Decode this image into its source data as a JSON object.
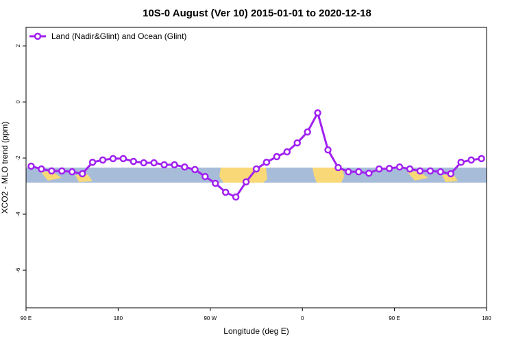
{
  "chart_data": {
    "type": "line",
    "title": "10S-0 August (Ver 10)   2015-01-01 to 2020-12-18",
    "x_label": "Longitude (deg E)",
    "y_label": "XCO2 - MLO trend (ppm)",
    "xlim": [
      90,
      540
    ],
    "ylim": [
      -7.34,
      2.66
    ],
    "xticks": [
      {
        "value": 90,
        "label": "90 E"
      },
      {
        "value": 180,
        "label": "180"
      },
      {
        "value": 270,
        "label": "90 W"
      },
      {
        "value": 360,
        "label": "0"
      },
      {
        "value": 450,
        "label": "90 E"
      },
      {
        "value": 540,
        "label": "180"
      }
    ],
    "yticks": [
      2,
      0,
      -2,
      -4,
      -6
    ],
    "legend": "top-left",
    "x": [
      95,
      105,
      115,
      125,
      135,
      145,
      155,
      165,
      175,
      185,
      195,
      205,
      215,
      225,
      235,
      245,
      255,
      265,
      275,
      285,
      295,
      305,
      315,
      325,
      335,
      345,
      355,
      365,
      375,
      385,
      395,
      405,
      415,
      425,
      435,
      445,
      455,
      465,
      475,
      485,
      495,
      505,
      515,
      525,
      535
    ],
    "series": [
      {
        "name": "Land (Nadir&Glint) and Ocean (Glint)",
        "color": "#a020f0",
        "values": [
          -2.29,
          -2.39,
          -2.46,
          -2.46,
          -2.49,
          -2.56,
          -2.15,
          -2.07,
          -2.02,
          -2.02,
          -2.12,
          -2.17,
          -2.17,
          -2.24,
          -2.24,
          -2.32,
          -2.41,
          -2.66,
          -2.9,
          -3.22,
          -3.39,
          -2.85,
          -2.39,
          -2.15,
          -1.95,
          -1.78,
          -1.46,
          -1.07,
          -0.39,
          -1.71,
          -2.34,
          -2.49,
          -2.49,
          -2.54,
          -2.39,
          -2.37,
          -2.32,
          -2.39,
          -2.46,
          -2.46,
          -2.49,
          -2.56,
          -2.15,
          -2.07,
          -2.02
        ]
      }
    ]
  }
}
